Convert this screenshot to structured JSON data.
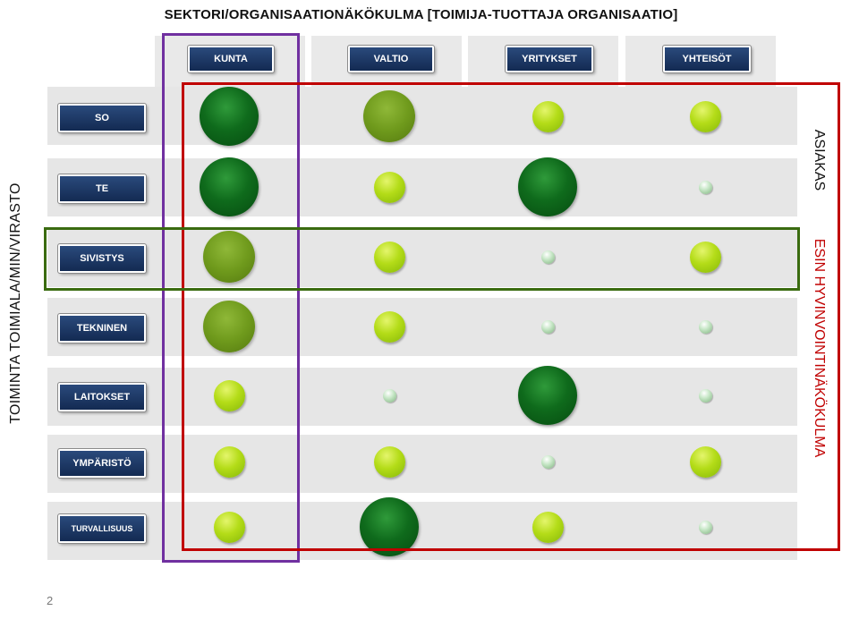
{
  "title": "SEKTORI/ORGANISAATIONÄKÖKULMA [TOIMIJA-TUOTTAJA ORGANISAATIO]",
  "y_axis_label": "TOIMINTA TOIMIALA/MIN/VIRASTO",
  "right_label_customer": "ASIAKAS",
  "right_label_welfare": "ESIN HYVINVOINTINÄKÖKULMA",
  "columns": [
    "KUNTA",
    "VALTIO",
    "YRITYKSET",
    "YHTEISÖT"
  ],
  "rows": [
    "SO",
    "TE",
    "SIVISTYS",
    "TEKNINEN",
    "LAITOKSET",
    "YMPÄRISTÖ",
    "TURVALLISUUS"
  ],
  "page_number": "2",
  "colors": {
    "purple_highlight": "#7030a0",
    "red_highlight": "#c00000",
    "green_highlight": "#3a6b10",
    "button_blue": "#1f3864"
  },
  "chart_data": {
    "type": "bubble-matrix",
    "scale": {
      "tiny": 1,
      "small": 2,
      "medium": 3,
      "large": 4
    },
    "cells": [
      {
        "row": "SO",
        "values": [
          4,
          3,
          2,
          2
        ]
      },
      {
        "row": "TE",
        "values": [
          4,
          2,
          4,
          1
        ]
      },
      {
        "row": "SIVISTYS",
        "values": [
          3,
          2,
          1,
          2
        ]
      },
      {
        "row": "TEKNINEN",
        "values": [
          3,
          2,
          1,
          1
        ]
      },
      {
        "row": "LAITOKSET",
        "values": [
          2,
          1,
          4,
          1
        ]
      },
      {
        "row": "YMPÄRISTÖ",
        "values": [
          2,
          2,
          1,
          2
        ]
      },
      {
        "row": "TURVALLISUUS",
        "values": [
          2,
          4,
          2,
          1
        ]
      }
    ]
  }
}
